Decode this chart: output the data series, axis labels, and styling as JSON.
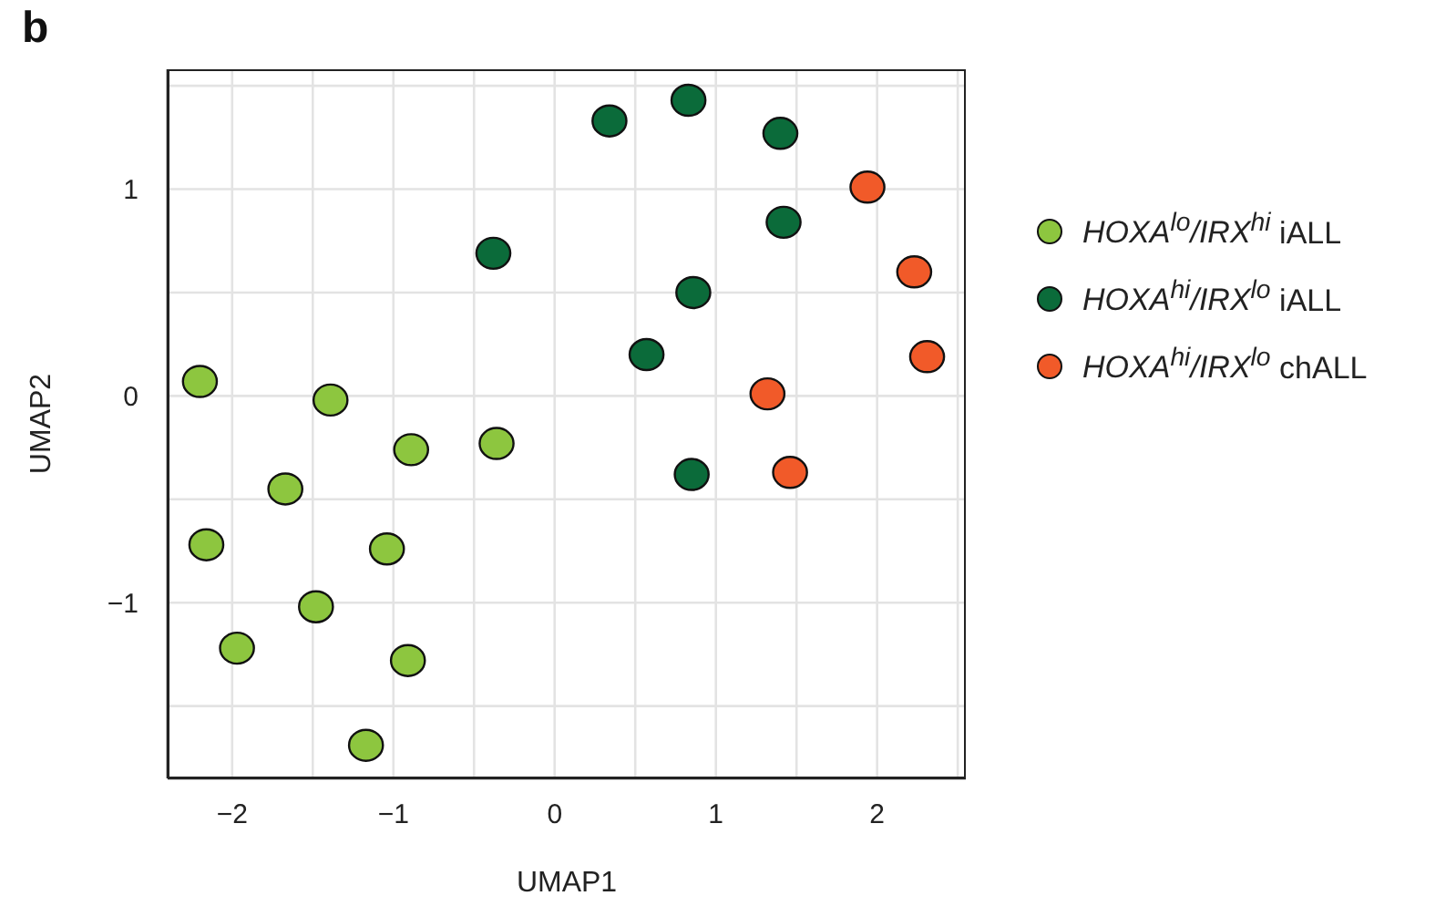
{
  "chart_data": {
    "type": "scatter",
    "title": "b",
    "xlabel": "UMAP1",
    "ylabel": "UMAP2",
    "xlim": [
      -2.4,
      2.55
    ],
    "ylim": [
      -1.85,
      1.58
    ],
    "xticks": [
      {
        "value": -2,
        "label": "−2"
      },
      {
        "value": -1.5,
        "label": null
      },
      {
        "value": -1,
        "label": "−1"
      },
      {
        "value": -0.5,
        "label": null
      },
      0,
      {
        "value": 0.5,
        "label": null
      },
      1,
      {
        "value": 1.5,
        "label": null
      },
      2,
      {
        "value": 2.5,
        "label": null
      }
    ],
    "yticks": [
      {
        "value": -1.5,
        "label": null
      },
      {
        "value": -1,
        "label": "−1"
      },
      {
        "value": -0.5,
        "label": null
      },
      0,
      {
        "value": 0.5,
        "label": null
      },
      1,
      {
        "value": 1.5,
        "label": null
      }
    ],
    "grid": true,
    "legend": "right",
    "marker": "circle",
    "series": [
      {
        "name": "HOXA$^{lo}$/IRX$^{hi}$ iALL",
        "color": "#8dc63f",
        "x": [
          -2.2,
          -1.39,
          -0.89,
          -0.36,
          -1.67,
          -2.16,
          -1.04,
          -1.48,
          -1.97,
          -0.91,
          -1.17
        ],
        "values": [
          0.07,
          -0.02,
          -0.26,
          -0.23,
          -0.45,
          -0.72,
          -0.74,
          -1.02,
          -1.22,
          -1.28,
          -1.69
        ]
      },
      {
        "name": "HOXA$^{hi}$/IRX$^{lo}$ iALL",
        "color": "#0b6b3a",
        "x": [
          0.34,
          0.83,
          1.4,
          -0.38,
          1.42,
          0.86,
          0.57,
          0.85
        ],
        "values": [
          1.33,
          1.43,
          1.27,
          0.69,
          0.84,
          0.5,
          0.2,
          -0.38
        ]
      },
      {
        "name": "HOXA$^{hi}$/IRX$^{lo}$ chALL",
        "color": "#f15a29",
        "x": [
          1.94,
          2.23,
          2.31,
          1.32,
          1.46
        ],
        "values": [
          1.01,
          0.6,
          0.19,
          0.01,
          -0.37
        ]
      }
    ]
  }
}
